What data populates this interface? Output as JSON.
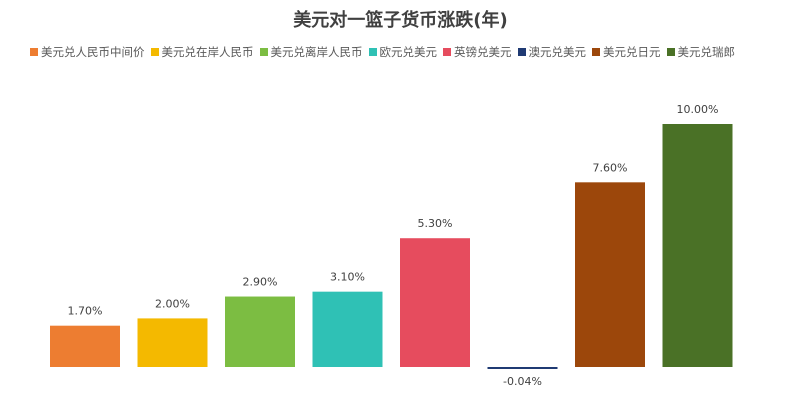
{
  "chart_data": {
    "type": "bar",
    "title": "美元对一篮子货币涨跌(年)",
    "xlabel": "",
    "ylabel": "",
    "grid": false,
    "legend_placement": "top",
    "categories": [
      "美元兑人民币中间价",
      "美元兑在岸人民币",
      "美元兑离岸人民币",
      "欧元兑美元",
      "英镑兑美元",
      "澳元兑美元",
      "美元兑日元",
      "美元兑瑞郎"
    ],
    "values": [
      1.7,
      2.0,
      2.9,
      3.1,
      5.3,
      -0.04,
      7.6,
      10.0
    ],
    "labels": [
      "1.70%",
      "2.00%",
      "2.90%",
      "3.10%",
      "5.30%",
      "-0.04%",
      "7.60%",
      "10.00%"
    ],
    "colors": [
      "#ED7D31",
      "#F4B900",
      "#7CBD42",
      "#2FC1B5",
      "#E64C5E",
      "#1F3A73",
      "#9C470B",
      "#4A7126"
    ],
    "ylim": [
      -0.04,
      10.0
    ]
  }
}
